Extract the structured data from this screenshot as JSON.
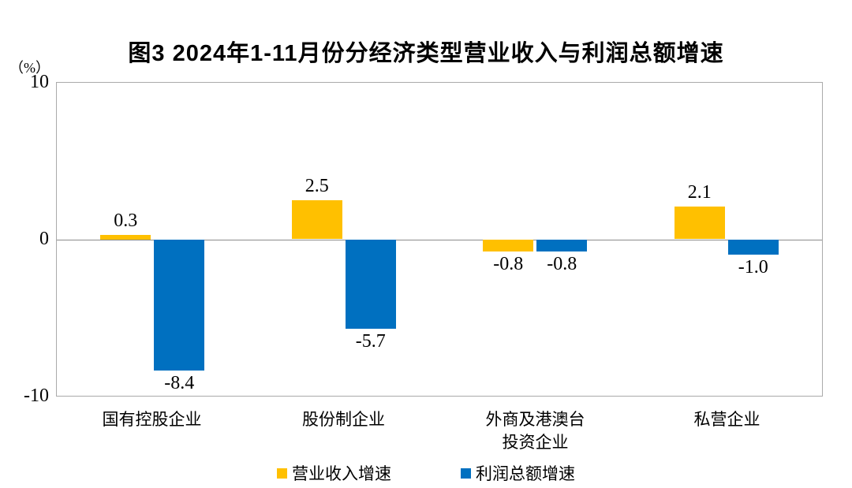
{
  "title": "图3 2024年1-11月份分经济类型营业收入与利润总额增速",
  "chart_data": {
    "type": "bar",
    "title": "图3 2024年1-11月份分经济类型营业收入与利润总额增速",
    "unit_label": "（%）",
    "categories": [
      "国有控股企业",
      "股份制企业",
      "外商及港澳台\n投资企业",
      "私营企业"
    ],
    "series": [
      {
        "name": "营业收入增速",
        "color": "#FFC000",
        "values": [
          0.3,
          2.5,
          -0.8,
          2.1
        ],
        "labels": [
          "0.3",
          "2.5",
          "-0.8",
          "2.1"
        ]
      },
      {
        "name": "利润总额增速",
        "color": "#0070C0",
        "values": [
          -8.4,
          -5.7,
          -0.8,
          -1.0
        ],
        "labels": [
          "-8.4",
          "-5.7",
          "-0.8",
          "-1.0"
        ]
      }
    ],
    "ylim": [
      -10,
      10
    ],
    "ytick_labels": [
      "10",
      "0",
      "-10"
    ],
    "grid": false,
    "zero_line": true,
    "legend_position": "bottom"
  }
}
